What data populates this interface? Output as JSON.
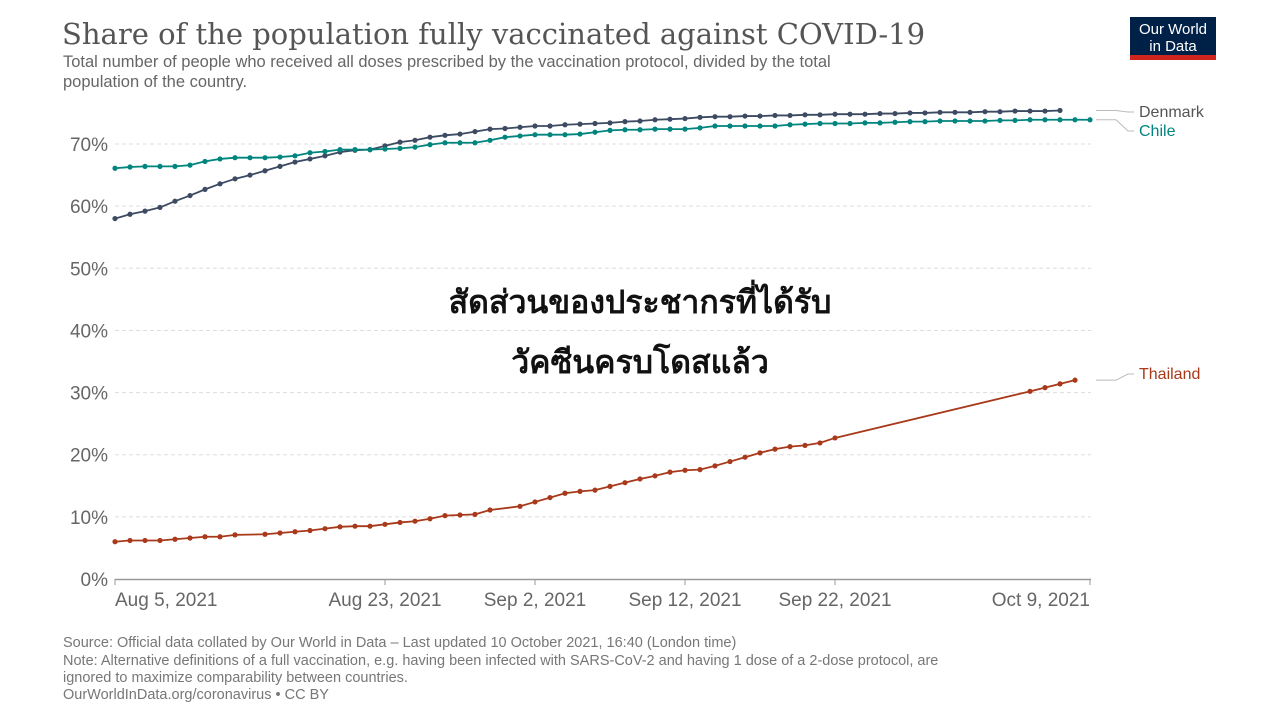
{
  "chart_data": {
    "type": "line",
    "title": "Share of the population fully vaccinated against COVID-19",
    "subtitle_lines": [
      "Total number of people who received all doses prescribed by the vaccination protocol, divided by the total",
      "population of the country."
    ],
    "annotation_lines": [
      "สัดส่วนของประชากรที่ได้รับ",
      "วัคซีนครบโดสแล้ว"
    ],
    "x_start": "2021-08-05",
    "x_end": "2021-10-09",
    "x_ticks": [
      {
        "date": "2021-08-05",
        "label": "Aug 5, 2021"
      },
      {
        "date": "2021-08-23",
        "label": "Aug 23, 2021"
      },
      {
        "date": "2021-09-02",
        "label": "Sep 2, 2021"
      },
      {
        "date": "2021-09-12",
        "label": "Sep 12, 2021"
      },
      {
        "date": "2021-09-22",
        "label": "Sep 22, 2021"
      },
      {
        "date": "2021-10-09",
        "label": "Oct 9, 2021"
      }
    ],
    "ylim": [
      0,
      75
    ],
    "y_ticks": [
      {
        "value": 0,
        "label": "0%"
      },
      {
        "value": 10,
        "label": "10%"
      },
      {
        "value": 20,
        "label": "20%"
      },
      {
        "value": 30,
        "label": "30%"
      },
      {
        "value": 40,
        "label": "40%"
      },
      {
        "value": 50,
        "label": "50%"
      },
      {
        "value": 60,
        "label": "60%"
      },
      {
        "value": 70,
        "label": "70%"
      }
    ],
    "grid": true,
    "legend": "right (inline labels)",
    "series": [
      {
        "name": "Denmark",
        "color": "#3c4a62",
        "start": "2021-08-05",
        "values": [
          58.0,
          58.7,
          59.2,
          59.8,
          60.8,
          61.7,
          62.7,
          63.6,
          64.4,
          65.0,
          65.7,
          66.4,
          67.1,
          67.6,
          68.1,
          68.7,
          69.0,
          69.1,
          69.7,
          70.3,
          70.6,
          71.1,
          71.4,
          71.6,
          72.0,
          72.4,
          72.5,
          72.7,
          72.9,
          72.9,
          73.1,
          73.2,
          73.3,
          73.4,
          73.6,
          73.7,
          73.9,
          74.0,
          74.1,
          74.3,
          74.4,
          74.4,
          74.5,
          74.5,
          74.6,
          74.6,
          74.7,
          74.7,
          74.8,
          74.8,
          74.8,
          74.9,
          74.9,
          75.0,
          75.0,
          75.1,
          75.1,
          75.1,
          75.2,
          75.2,
          75.3,
          75.3,
          75.3,
          75.4
        ]
      },
      {
        "name": "Chile",
        "color": "#00847e",
        "start": "2021-08-05",
        "values": [
          66.1,
          66.3,
          66.4,
          66.4,
          66.4,
          66.6,
          67.2,
          67.6,
          67.8,
          67.8,
          67.8,
          67.9,
          68.1,
          68.6,
          68.8,
          69.1,
          69.1,
          69.1,
          69.2,
          69.3,
          69.5,
          69.9,
          70.2,
          70.2,
          70.2,
          70.6,
          71.1,
          71.3,
          71.5,
          71.5,
          71.5,
          71.6,
          71.9,
          72.2,
          72.3,
          72.3,
          72.4,
          72.4,
          72.4,
          72.6,
          72.9,
          72.9,
          72.9,
          72.9,
          72.9,
          73.1,
          73.2,
          73.3,
          73.3,
          73.3,
          73.4,
          73.4,
          73.5,
          73.6,
          73.6,
          73.7,
          73.7,
          73.7,
          73.7,
          73.8,
          73.8,
          73.9,
          73.9,
          73.9,
          73.9,
          73.9
        ]
      },
      {
        "name": "Thailand",
        "color": "#a8391a",
        "start": "2021-08-05",
        "values": [
          6.0,
          6.2,
          6.2,
          6.2,
          6.4,
          6.6,
          6.8,
          6.8,
          7.1,
          null,
          7.2,
          7.4,
          7.6,
          7.8,
          8.1,
          8.4,
          8.5,
          8.5,
          8.8,
          9.1,
          9.3,
          9.7,
          10.2,
          10.3,
          10.4,
          11.1,
          null,
          11.7,
          12.4,
          13.1,
          13.8,
          14.1,
          14.3,
          14.9,
          15.5,
          16.1,
          16.6,
          17.2,
          17.5,
          17.6,
          18.2,
          18.9,
          19.6,
          20.3,
          20.9,
          21.3,
          21.5,
          21.9,
          22.7,
          null,
          null,
          null,
          null,
          null,
          null,
          null,
          null,
          null,
          null,
          null,
          null,
          30.2,
          30.8,
          31.4,
          32.0
        ]
      }
    ]
  },
  "logo": {
    "line1": "Our World",
    "line2": "in Data",
    "bg": "#002147",
    "accent": "#ce261e"
  },
  "footer": {
    "source": "Source: Official data collated by Our World in Data – Last updated 10 October 2021, 16:40 (London time)",
    "note1": "Note: Alternative definitions of a full vaccination, e.g. having been infected with SARS-CoV-2 and having 1 dose of a 2-dose protocol, are",
    "note2": "ignored to maximize comparability between countries.",
    "link": "OurWorldInData.org/coronavirus • CC BY"
  }
}
